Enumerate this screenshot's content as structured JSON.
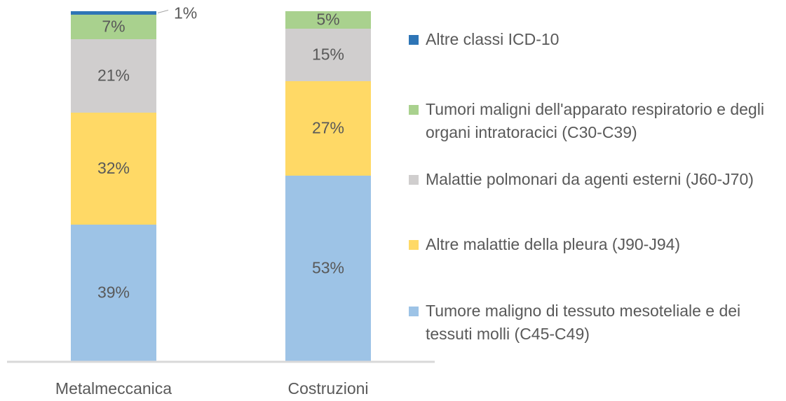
{
  "chart_data": {
    "type": "stacked_bar",
    "categories": [
      "Metalmeccanica",
      "Costruzioni"
    ],
    "ylim": [
      0,
      100
    ],
    "series": [
      {
        "name": "Tumore maligno di tessuto mesoteliale e dei tessuti molli (C45-C49)",
        "color": "#9dc3e6",
        "values": [
          39,
          53
        ],
        "value_labels": [
          "39%",
          "53%"
        ]
      },
      {
        "name": "Altre malattie della pleura (J90-J94)",
        "color": "#ffd966",
        "values": [
          32,
          27
        ],
        "value_labels": [
          "32%",
          "27%"
        ]
      },
      {
        "name": "Malattie polmonari da agenti esterni (J60-J70)",
        "color": "#d0cece",
        "values": [
          21,
          15
        ],
        "value_labels": [
          "21%",
          "15%"
        ]
      },
      {
        "name": "Tumori maligni dell'apparato respiratorio e degli organi intratoracici (C30-C39)",
        "color": "#a9d18e",
        "values": [
          7,
          5
        ],
        "value_labels": [
          "7%",
          "5%"
        ]
      },
      {
        "name": "Altre classi ICD-10",
        "color": "#2e75b6",
        "values": [
          1,
          null
        ],
        "value_labels": [
          "1%",
          null
        ]
      }
    ]
  }
}
